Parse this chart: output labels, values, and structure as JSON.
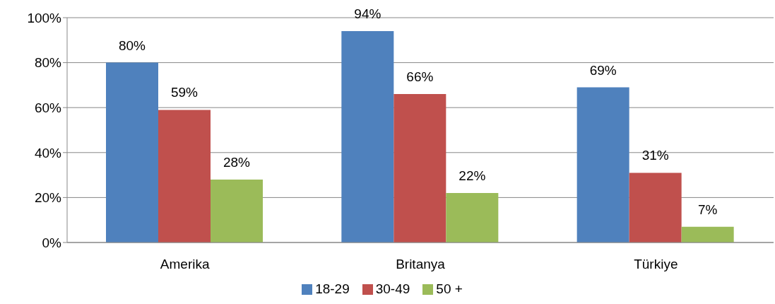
{
  "chart_data": {
    "type": "bar",
    "categories": [
      "Amerika",
      "Britanya",
      "Türkiye"
    ],
    "series": [
      {
        "name": "18-29",
        "color": "#4f81bd",
        "values": [
          80,
          94,
          69
        ],
        "value_labels": [
          "80%",
          "94%",
          "69%"
        ]
      },
      {
        "name": "30-49",
        "color": "#c0504d",
        "values": [
          59,
          66,
          31
        ],
        "value_labels": [
          "59%",
          "66%",
          "31%"
        ]
      },
      {
        "name": "50 +",
        "color": "#9bbb59",
        "values": [
          28,
          22,
          7
        ],
        "value_labels": [
          "28%",
          "22%",
          "7%"
        ]
      }
    ],
    "ylim": [
      0,
      100
    ],
    "yticks": [
      {
        "value": 0,
        "label": "0%"
      },
      {
        "value": 20,
        "label": "20%"
      },
      {
        "value": 40,
        "label": "40%"
      },
      {
        "value": 60,
        "label": "60%"
      },
      {
        "value": 80,
        "label": "80%"
      },
      {
        "value": 100,
        "label": "100%"
      }
    ],
    "grid": "y",
    "legend": "bottom"
  }
}
